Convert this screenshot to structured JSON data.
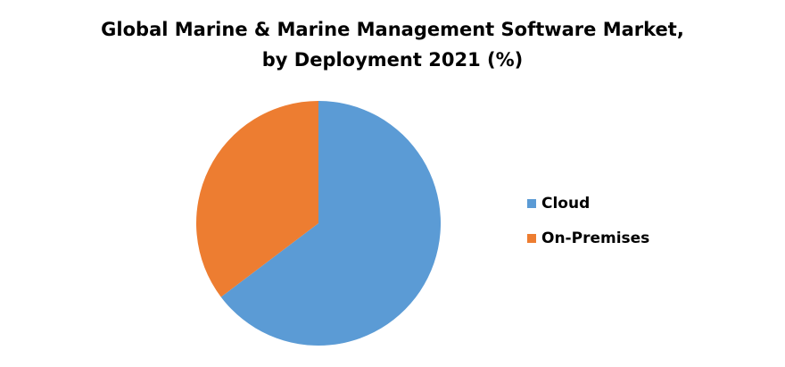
{
  "chart_data": {
    "type": "pie",
    "title_lines": [
      "Global Marine & Marine Management Software Market,",
      "by Deployment 2021 (%)"
    ],
    "categories": [
      "Cloud",
      "On-Premises"
    ],
    "values": [
      64.7,
      35.3
    ],
    "colors": [
      "#5b9bd5",
      "#ed7d31"
    ],
    "start": "12 o'clock",
    "direction": "clockwise",
    "legend_position": "right"
  }
}
